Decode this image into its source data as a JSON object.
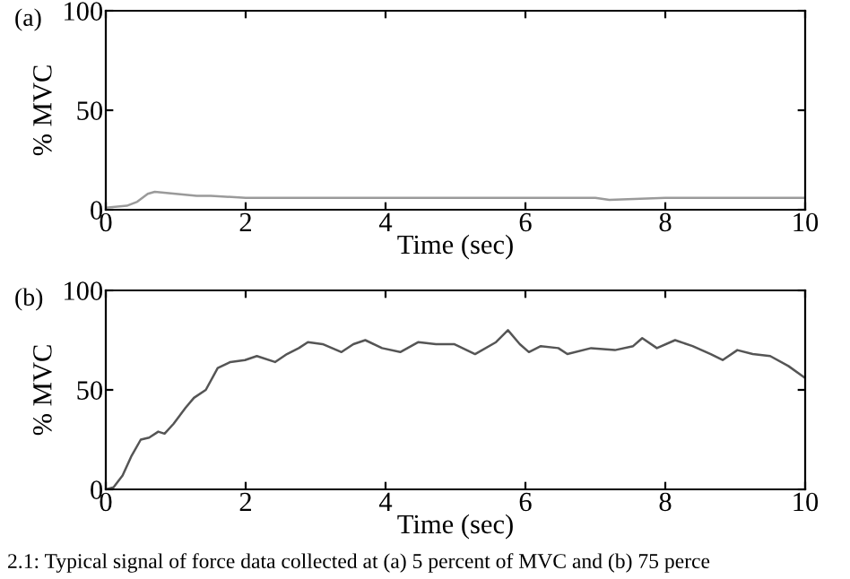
{
  "chart_data": [
    {
      "type": "line",
      "xlabel": "Time (sec)",
      "ylabel": "% MVC",
      "annotations": [
        "(a)"
      ],
      "series": [
        {
          "color": "#9a9a9a",
          "x": [
            0,
            0.3,
            0.45,
            0.6,
            0.7,
            1.0,
            1.3,
            1.5,
            2,
            3,
            4,
            5,
            6,
            7,
            7.2,
            8,
            8.8,
            10
          ],
          "values": [
            1,
            2,
            4,
            8,
            9,
            8,
            7,
            7,
            6,
            6,
            6,
            6,
            6,
            6,
            5,
            6,
            6,
            6
          ]
        }
      ],
      "xlim": [
        0,
        10
      ],
      "ylim": [
        0,
        100
      ],
      "xticks": [
        0,
        2,
        4,
        6,
        8,
        10
      ],
      "yticks": [
        0,
        50,
        100
      ],
      "grid": false,
      "legend": false
    },
    {
      "type": "line",
      "xlabel": "Time (sec)",
      "ylabel": "% MVC",
      "annotations": [
        "(b)",
        "2.1: Typical signal of force data collected at (a) 5 percent of MVC and (b) 75 perce"
      ],
      "series": [
        {
          "color": "#555555",
          "x": [
            0,
            0.11,
            0.24,
            0.37,
            0.5,
            0.62,
            0.75,
            0.84,
            0.97,
            1.14,
            1.26,
            1.43,
            1.6,
            1.78,
            1.99,
            2.16,
            2.42,
            2.59,
            2.76,
            2.89,
            3.1,
            3.37,
            3.54,
            3.71,
            3.95,
            4.21,
            4.47,
            4.72,
            4.98,
            5.28,
            5.58,
            5.75,
            5.92,
            6.05,
            6.22,
            6.47,
            6.6,
            6.94,
            7.28,
            7.54,
            7.67,
            7.88,
            8.14,
            8.39,
            8.65,
            8.82,
            9.03,
            9.25,
            9.5,
            9.76,
            10
          ],
          "values": [
            0,
            1,
            7,
            17,
            25,
            26,
            29,
            28,
            33,
            41,
            46,
            50,
            61,
            64,
            65,
            67,
            64,
            68,
            71,
            74,
            73,
            69,
            73,
            75,
            71,
            69,
            74,
            73,
            73,
            68,
            74,
            80,
            73,
            69,
            72,
            71,
            68,
            71,
            70,
            72,
            76,
            71,
            75,
            72,
            68,
            65,
            70,
            68,
            67,
            62,
            56
          ]
        }
      ],
      "xlim": [
        0,
        10
      ],
      "ylim": [
        0,
        100
      ],
      "xticks": [
        0,
        2,
        4,
        6,
        8,
        10
      ],
      "yticks": [
        0,
        50,
        100
      ],
      "grid": false,
      "legend": false
    }
  ]
}
